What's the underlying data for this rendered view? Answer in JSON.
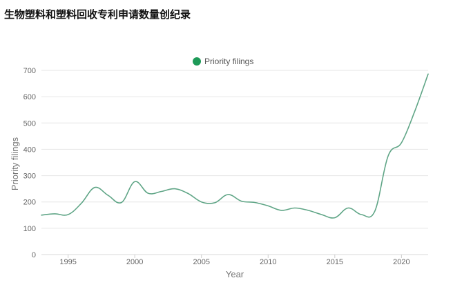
{
  "page": {
    "title": "生物塑料和塑料回收专利申请数量创纪录"
  },
  "chart_data": {
    "type": "line",
    "xlabel": "Year",
    "ylabel": "Priority filings",
    "xlim": [
      1993,
      2022
    ],
    "ylim": [
      0,
      700
    ],
    "x_ticks": [
      1995,
      2000,
      2005,
      2010,
      2015,
      2020
    ],
    "y_ticks": [
      0,
      100,
      200,
      300,
      400,
      500,
      600,
      700
    ],
    "grid": true,
    "legend_position": "top-center",
    "series": [
      {
        "name": "Priority filings",
        "color": "#5fa586",
        "legend_color": "#1e9a58",
        "x": [
          1993,
          1994,
          1995,
          1996,
          1997,
          1998,
          1999,
          2000,
          2001,
          2002,
          2003,
          2004,
          2005,
          2006,
          2007,
          2008,
          2009,
          2010,
          2011,
          2012,
          2013,
          2014,
          2015,
          2016,
          2017,
          2018,
          2019,
          2020,
          2021,
          2022
        ],
        "values": [
          150,
          155,
          152,
          195,
          255,
          225,
          198,
          277,
          233,
          240,
          250,
          232,
          200,
          197,
          228,
          203,
          198,
          185,
          168,
          177,
          168,
          152,
          140,
          177,
          152,
          165,
          375,
          425,
          545,
          686
        ]
      }
    ]
  }
}
